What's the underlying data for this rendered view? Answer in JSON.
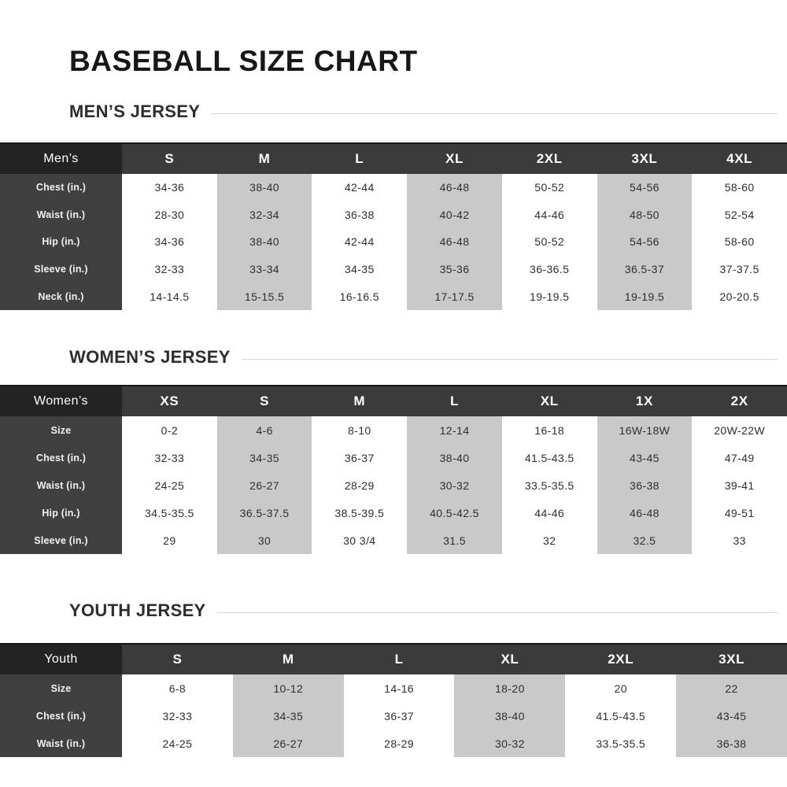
{
  "page": {
    "title": "BASEBALL SIZE CHART"
  },
  "colors": {
    "corner-header-bg": "#232323",
    "size-header-bg": "#3b3b3b",
    "row-label-bg": "#404040",
    "shaded-cell-bg": "#c9c9c9",
    "heading-rule": "#d8d8d8",
    "cell-text": "#2e2e2e",
    "heading-text": "#2d2d2d",
    "title-text": "#171717"
  },
  "sections": [
    {
      "heading": "MEN’S JERSEY",
      "table": {
        "corner": "Men’s",
        "sizes": [
          "S",
          "M",
          "L",
          "XL",
          "2XL",
          "3XL",
          "4XL"
        ],
        "rows": [
          {
            "label": "Chest (in.)",
            "values": [
              "34-36",
              "38-40",
              "42-44",
              "46-48",
              "50-52",
              "54-56",
              "58-60"
            ]
          },
          {
            "label": "Waist (in.)",
            "values": [
              "28-30",
              "32-34",
              "36-38",
              "40-42",
              "44-46",
              "48-50",
              "52-54"
            ]
          },
          {
            "label": "Hip (in.)",
            "values": [
              "34-36",
              "38-40",
              "42-44",
              "46-48",
              "50-52",
              "54-56",
              "58-60"
            ]
          },
          {
            "label": "Sleeve (in.)",
            "values": [
              "32-33",
              "33-34",
              "34-35",
              "35-36",
              "36-36.5",
              "36.5-37",
              "37-37.5"
            ]
          },
          {
            "label": "Neck (in.)",
            "values": [
              "14-14.5",
              "15-15.5",
              "16-16.5",
              "17-17.5",
              "19-19.5",
              "19-19.5",
              "20-20.5"
            ]
          }
        ]
      }
    },
    {
      "heading": "WOMEN’S JERSEY",
      "table": {
        "corner": "Women’s",
        "sizes": [
          "XS",
          "S",
          "M",
          "L",
          "XL",
          "1X",
          "2X"
        ],
        "rows": [
          {
            "label": "Size",
            "values": [
              "0-2",
              "4-6",
              "8-10",
              "12-14",
              "16-18",
              "16W-18W",
              "20W-22W"
            ]
          },
          {
            "label": "Chest (in.)",
            "values": [
              "32-33",
              "34-35",
              "36-37",
              "38-40",
              "41.5-43.5",
              "43-45",
              "47-49"
            ]
          },
          {
            "label": "Waist (in.)",
            "values": [
              "24-25",
              "26-27",
              "28-29",
              "30-32",
              "33.5-35.5",
              "36-38",
              "39-41"
            ]
          },
          {
            "label": "Hip (in.)",
            "values": [
              "34.5-35.5",
              "36.5-37.5",
              "38.5-39.5",
              "40.5-42.5",
              "44-46",
              "46-48",
              "49-51"
            ]
          },
          {
            "label": "Sleeve (in.)",
            "values": [
              "29",
              "30",
              "30 3/4",
              "31.5",
              "32",
              "32.5",
              "33"
            ]
          }
        ]
      }
    },
    {
      "heading": "YOUTH JERSEY",
      "table": {
        "corner": "Youth",
        "sizes": [
          "S",
          "M",
          "L",
          "XL",
          "2XL",
          "3XL"
        ],
        "rows": [
          {
            "label": "Size",
            "values": [
              "6-8",
              "10-12",
              "14-16",
              "18-20",
              "20",
              "22"
            ]
          },
          {
            "label": "Chest (in.)",
            "values": [
              "32-33",
              "34-35",
              "36-37",
              "38-40",
              "41.5-43.5",
              "43-45"
            ]
          },
          {
            "label": "Waist (in.)",
            "values": [
              "24-25",
              "26-27",
              "28-29",
              "30-32",
              "33.5-35.5",
              "36-38"
            ]
          }
        ]
      }
    }
  ]
}
